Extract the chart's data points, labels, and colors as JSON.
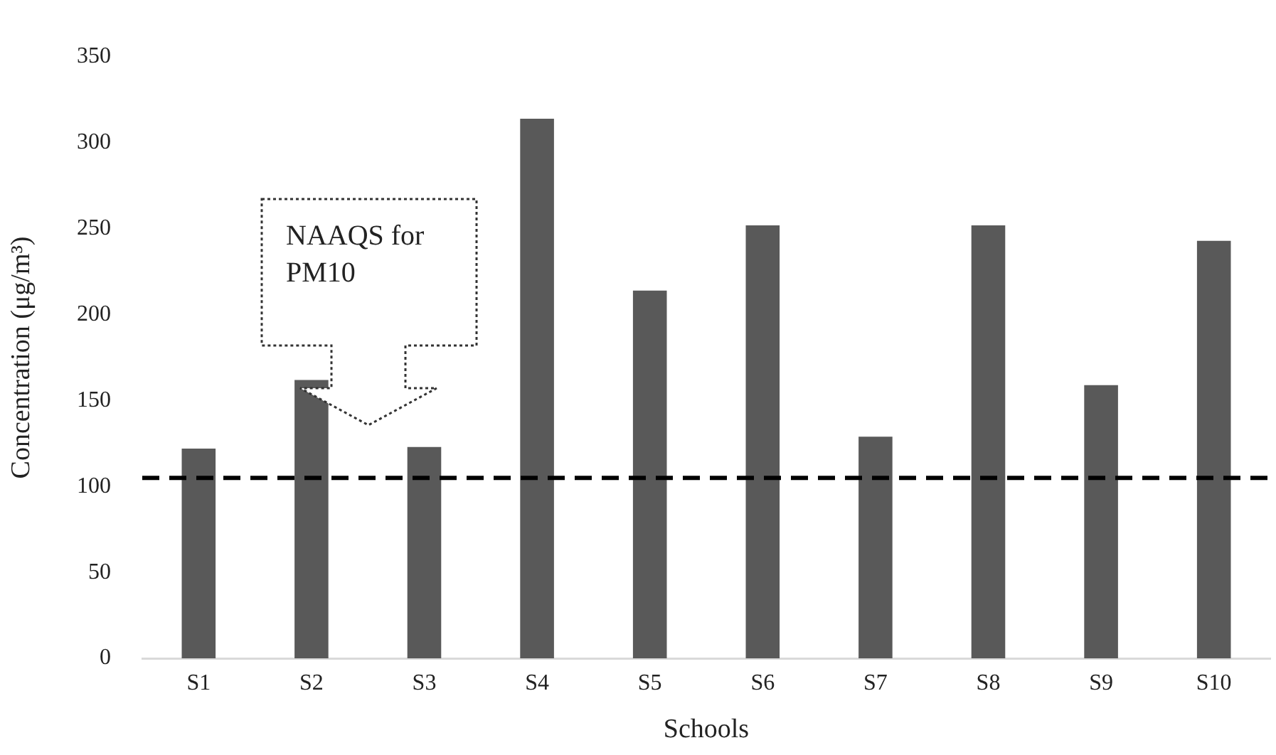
{
  "chart_data": {
    "type": "bar",
    "xlabel": "Schools",
    "ylabel": "Concentration (μg/m³)",
    "categories": [
      "S1",
      "S2",
      "S3",
      "S4",
      "S5",
      "S6",
      "S7",
      "S8",
      "S9",
      "S10"
    ],
    "values": [
      122,
      162,
      123,
      314,
      214,
      252,
      129,
      252,
      159,
      243
    ],
    "color": "#595959",
    "ylim": [
      0,
      350
    ],
    "yticks": [
      0,
      50,
      100,
      150,
      200,
      250,
      300,
      350
    ],
    "grid": false,
    "legend": false,
    "ref_lines": [
      {
        "axis": "y",
        "value": 105,
        "label": "NAAQS for PM10",
        "color": "#000000",
        "line_style": "dashed"
      }
    ]
  }
}
